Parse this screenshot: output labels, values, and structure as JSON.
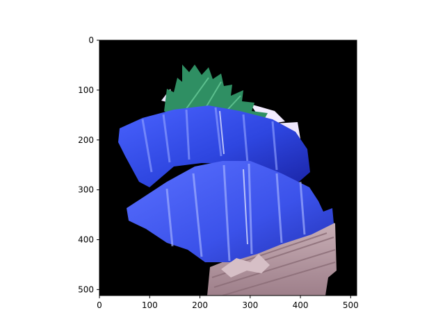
{
  "chart_data": {
    "type": "image",
    "title": "",
    "xlabel": "",
    "ylabel": "",
    "image_extent": {
      "width": 512,
      "height": 512
    },
    "xlim": [
      0,
      512
    ],
    "ylim": [
      512,
      0
    ],
    "x_ticks": [
      0,
      100,
      200,
      300,
      400,
      500
    ],
    "y_ticks": [
      0,
      100,
      200,
      300,
      400,
      500
    ],
    "x_tick_labels": [
      "0",
      "100",
      "200",
      "300",
      "400",
      "500"
    ],
    "y_tick_labels": [
      "0",
      "100",
      "200",
      "300",
      "400",
      "500"
    ],
    "grid": false,
    "background_color": "#000000",
    "subject": "blue-tinted sashimi slices on green leaf garnish with wooden board",
    "colors": {
      "sashimi": "#3d55f0",
      "sashimi_dark": "#1d2ab8",
      "leaf": "#2f8f63",
      "board": "#b89aa3",
      "mask": "#f3ecff"
    }
  }
}
